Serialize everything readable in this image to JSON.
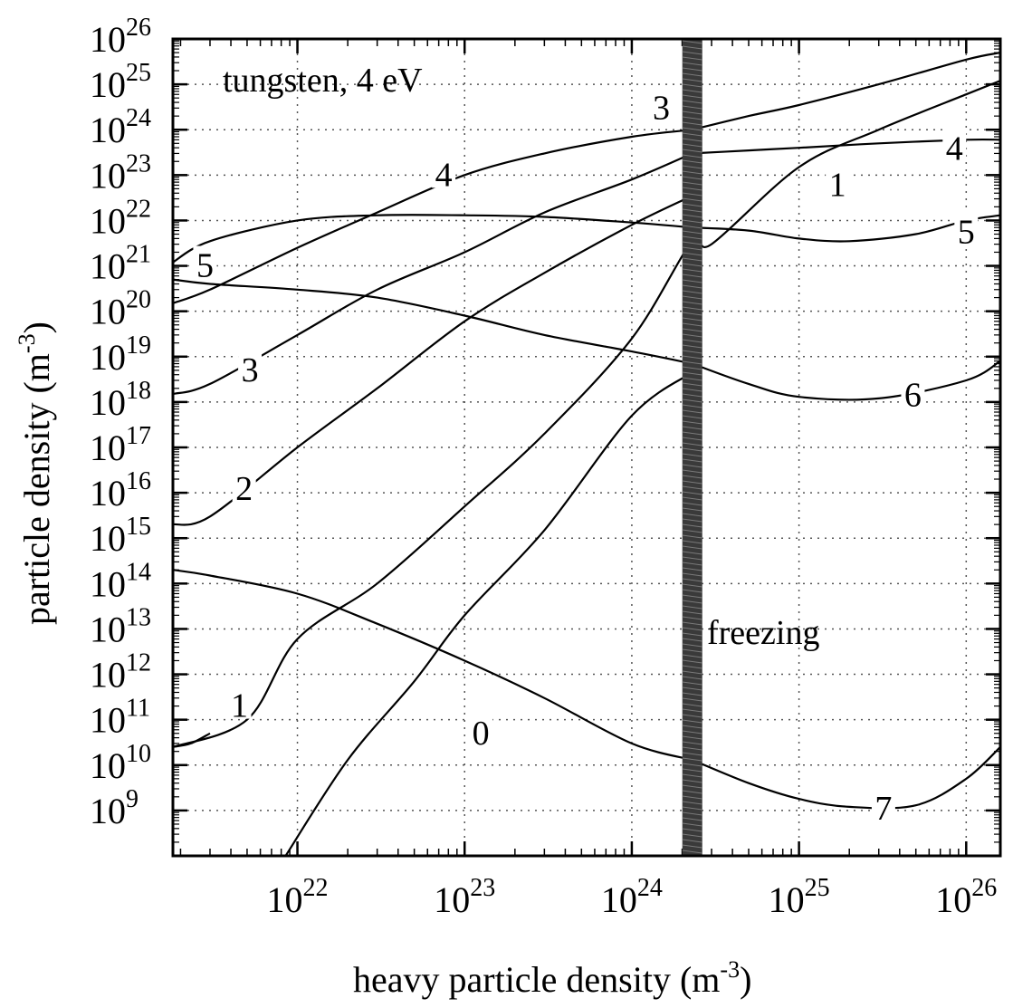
{
  "chart_data": {
    "type": "line",
    "title": "",
    "annotation": "tungsten, 4 eV",
    "xlabel": "heavy particle density (m",
    "xlabel_exp": "-3",
    "xlabel_end": ")",
    "ylabel": "particle density (m",
    "ylabel_exp": "-3",
    "ylabel_end": ")",
    "xscale": "log",
    "yscale": "log",
    "xlim": [
      1.8e+21,
      1.6e+26
    ],
    "ylim": [
      100000000.0,
      1e+26
    ],
    "grid": true,
    "x_tick_labels": [
      {
        "base": "10",
        "exp": "22",
        "value": 1e+22
      },
      {
        "base": "10",
        "exp": "23",
        "value": 1e+23
      },
      {
        "base": "10",
        "exp": "24",
        "value": 1e+24
      },
      {
        "base": "10",
        "exp": "25",
        "value": 1e+25
      },
      {
        "base": "10",
        "exp": "26",
        "value": 1e+26
      }
    ],
    "y_tick_labels": [
      {
        "base": "10",
        "exp": "9",
        "value": 1000000000.0
      },
      {
        "base": "10",
        "exp": "10",
        "value": 10000000000.0
      },
      {
        "base": "10",
        "exp": "11",
        "value": 100000000000.0
      },
      {
        "base": "10",
        "exp": "12",
        "value": 1000000000000.0
      },
      {
        "base": "10",
        "exp": "13",
        "value": 10000000000000.0
      },
      {
        "base": "10",
        "exp": "14",
        "value": 100000000000000.0
      },
      {
        "base": "10",
        "exp": "15",
        "value": 1000000000000000.0
      },
      {
        "base": "10",
        "exp": "16",
        "value": 1e+16
      },
      {
        "base": "10",
        "exp": "17",
        "value": 1e+17
      },
      {
        "base": "10",
        "exp": "18",
        "value": 1e+18
      },
      {
        "base": "10",
        "exp": "19",
        "value": 1e+19
      },
      {
        "base": "10",
        "exp": "20",
        "value": 1e+20
      },
      {
        "base": "10",
        "exp": "21",
        "value": 1e+21
      },
      {
        "base": "10",
        "exp": "22",
        "value": 1e+22
      },
      {
        "base": "10",
        "exp": "23",
        "value": 1e+23
      },
      {
        "base": "10",
        "exp": "24",
        "value": 1e+24
      },
      {
        "base": "10",
        "exp": "25",
        "value": 1e+25
      },
      {
        "base": "10",
        "exp": "26",
        "value": 1e+26
      }
    ],
    "freezing": {
      "label": "freezing",
      "x": 2.3e+24
    },
    "curves": [
      {
        "label": "0",
        "label_at": [
          1.25e+23,
          50000000000.0
        ],
        "x": [
          8.5e+21,
          2e+22,
          5e+22,
          1e+23,
          3e+23,
          1e+24,
          2.3e+24
        ],
        "y": [
          100000000.0,
          13000000000.0,
          700000000000.0,
          20000000000000.0,
          1500000000000000.0,
          5e+17,
          4.5e+18
        ]
      },
      {
        "label": "1",
        "label_at": [
          1.7e+25,
          6e+22
        ],
        "x": [
          1.8e+21,
          5e+21,
          1e+22,
          3e+22,
          1e+23,
          3e+23,
          1e+24,
          2.3e+24,
          3e+24,
          1e+25,
          3e+25,
          1e+26,
          1.6e+26
        ],
        "y": [
          25000000000.0,
          100000000000.0,
          6000000000000.0,
          100000000000000.0,
          5000000000000000.0,
          2e+17,
          2.5e+19,
          3.5e+21,
          3e+21,
          1.5e+23,
          1e+24,
          6e+24,
          1.2e+25
        ]
      },
      {
        "label": "1",
        "label_at": [
          4.5e+21,
          200000000000.0
        ],
        "x": [
          1.8e+21,
          2.3e+21,
          3e+21
        ],
        "y": [
          25000000000.0,
          30000000000.0,
          50000000000.0
        ]
      },
      {
        "label": "2",
        "label_at": [
          4.8e+21,
          1.2e+16
        ],
        "x": [
          1.8e+21,
          3e+21,
          1e+22,
          3e+22,
          1e+23,
          3e+23,
          1e+24,
          2.3e+24
        ],
        "y": [
          2000000000000000.0,
          3000000000000000.0,
          1e+17,
          2e+18,
          6e+19,
          7e+20,
          8e+21,
          3.5e+22
        ]
      },
      {
        "label": "3",
        "label_at": [
          5.2e+21,
          5e+18
        ],
        "x": [
          1.8e+21,
          3e+21,
          1e+22,
          3e+22,
          1e+23,
          3e+23,
          1e+24,
          2.3e+24
        ],
        "y": [
          1.5e+18,
          2.5e+18,
          3e+19,
          3e+20,
          2e+21,
          1.5e+22,
          8e+22,
          3e+23
        ]
      },
      {
        "label": "3",
        "label_at": [
          1.5e+24,
          3e+24
        ],
        "x": [
          2.3e+24,
          5e+24,
          1e+25,
          3e+25,
          1e+26,
          1.6e+26
        ],
        "y": [
          1e+24,
          2e+24,
          3.5e+24,
          1e+25,
          3.5e+25,
          5e+25
        ]
      },
      {
        "label": "4",
        "label_at": [
          7.5e+22,
          1e+23
        ],
        "x": [
          1.8e+21,
          3e+21,
          1e+22,
          3e+22,
          1e+23,
          3e+23,
          1e+24,
          2.3e+24
        ],
        "y": [
          1.5e+20,
          3e+20,
          2.5e+21,
          1.5e+22,
          1e+23,
          3e+23,
          7e+23,
          1e+24
        ]
      },
      {
        "label": "4",
        "label_at": [
          8.5e+25,
          3.8e+23
        ],
        "x": [
          2.3e+24,
          5e+24,
          1e+25,
          3e+25,
          1e+26,
          1.6e+26
        ],
        "y": [
          3e+23,
          3.5e+23,
          4e+23,
          5e+23,
          6e+23,
          6e+23
        ]
      },
      {
        "label": "5",
        "label_at": [
          2.8e+21,
          1e+21
        ],
        "x": [
          1.8e+21,
          3e+21,
          1e+22,
          3e+22,
          1e+23,
          3e+23,
          1e+24,
          2.3e+24
        ],
        "y": [
          1.2e+21,
          3.5e+21,
          1e+22,
          1.3e+22,
          1.3e+22,
          1.2e+22,
          9e+21,
          7e+21
        ]
      },
      {
        "label": "5",
        "label_at": [
          1e+26,
          5.5e+21
        ],
        "x": [
          2.3e+24,
          5e+24,
          1e+25,
          2e+25,
          5e+25,
          1e+26,
          1.6e+26
        ],
        "y": [
          7e+21,
          6e+21,
          4e+21,
          3.5e+21,
          5e+21,
          1e+22,
          1.3e+22
        ]
      },
      {
        "label": "6",
        "label_at": [
          4.8e+25,
          1.4e+18
        ],
        "x": [
          1.8e+21,
          3e+21,
          1e+22,
          3e+22,
          1e+23,
          3e+23,
          1e+24,
          2.3e+24
        ],
        "y": [
          5e+20,
          4e+20,
          3e+20,
          2e+20,
          8e+19,
          3e+19,
          1.3e+19,
          7e+18
        ]
      },
      {
        "label": "6",
        "label_at": [
          4.8e+25,
          1.4e+18
        ],
        "x": [
          2.3e+24,
          5e+24,
          1e+25,
          3e+25,
          1e+26,
          1.6e+26
        ],
        "y": [
          7e+18,
          2.5e+18,
          1.3e+18,
          1.2e+18,
          3e+18,
          8e+18
        ]
      },
      {
        "label": "7",
        "label_at": [
          3.2e+25,
          1100000000.0
        ],
        "x": [
          1.8e+21,
          3e+21,
          1e+22,
          3e+22,
          1e+23,
          3e+23,
          1e+24,
          2.3e+24
        ],
        "y": [
          200000000000000.0,
          150000000000000.0,
          60000000000000.0,
          13000000000000.0,
          2000000000000.0,
          300000000000.0,
          30000000000.0,
          13000000000.0
        ]
      },
      {
        "label": "7",
        "label_at": [
          3.2e+25,
          1100000000.0
        ],
        "x": [
          2.3e+24,
          5e+24,
          1e+25,
          2e+25,
          5e+25,
          1e+26,
          1.6e+26
        ],
        "y": [
          13000000000.0,
          4000000000.0,
          1800000000.0,
          1200000000.0,
          1300000000.0,
          5000000000.0,
          25000000000.0
        ]
      }
    ]
  }
}
